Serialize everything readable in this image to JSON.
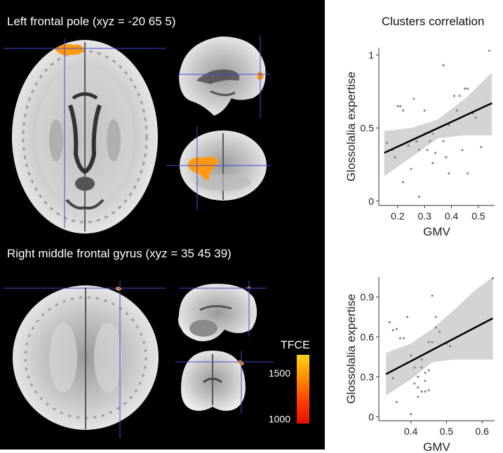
{
  "panels": {
    "top_title": "Left frontal pole (xyz = -20 65 5)",
    "bottom_title": "Right middle frontal gyrus (xyz = 35 45 39)"
  },
  "colorbar": {
    "title": "TFCE",
    "ticks": [
      "1500",
      "1000"
    ],
    "tick_values": [
      1500,
      1000
    ],
    "range": [
      950,
      1700
    ],
    "colors": [
      "#ffd21a",
      "#ff8a00",
      "#ff3a00",
      "#e01000"
    ]
  },
  "overlay_color": "#ff9a10",
  "crosshair_color": "#4747d8",
  "plots_title": "Clusters correlation",
  "chart_data": [
    {
      "type": "scatter",
      "xlabel": "GMV",
      "ylabel": "Glossolalia expertise",
      "xlim": [
        0.13,
        0.56
      ],
      "ylim": [
        -0.03,
        1.05
      ],
      "xticks": [
        0.2,
        0.3,
        0.4,
        0.5
      ],
      "xtick_labels": [
        "0.2",
        "0.3",
        "0.4",
        "0.5"
      ],
      "yticks": [
        0,
        0.5,
        1
      ],
      "ytick_labels": [
        "0",
        "0.5",
        "1"
      ],
      "fit_line": [
        [
          0.15,
          0.33
        ],
        [
          0.55,
          0.67
        ]
      ],
      "ci_upper": [
        [
          0.15,
          0.48
        ],
        [
          0.25,
          0.5
        ],
        [
          0.35,
          0.56
        ],
        [
          0.45,
          0.7
        ],
        [
          0.55,
          0.88
        ]
      ],
      "ci_lower": [
        [
          0.15,
          0.17
        ],
        [
          0.25,
          0.3
        ],
        [
          0.35,
          0.43
        ],
        [
          0.45,
          0.45
        ],
        [
          0.55,
          0.45
        ]
      ],
      "points": [
        [
          0.16,
          0.4
        ],
        [
          0.18,
          0.35
        ],
        [
          0.19,
          0.3
        ],
        [
          0.2,
          0.65
        ],
        [
          0.21,
          0.65
        ],
        [
          0.22,
          0.62
        ],
        [
          0.22,
          0.13
        ],
        [
          0.24,
          0.38
        ],
        [
          0.25,
          0.22
        ],
        [
          0.26,
          0.7
        ],
        [
          0.27,
          0.41
        ],
        [
          0.28,
          0.03
        ],
        [
          0.28,
          0.35
        ],
        [
          0.3,
          0.62
        ],
        [
          0.3,
          0.46
        ],
        [
          0.31,
          0.35
        ],
        [
          0.32,
          0.41
        ],
        [
          0.33,
          0.46
        ],
        [
          0.33,
          0.26
        ],
        [
          0.34,
          0.33
        ],
        [
          0.35,
          0.5
        ],
        [
          0.37,
          0.93
        ],
        [
          0.37,
          0.41
        ],
        [
          0.38,
          0.3
        ],
        [
          0.39,
          0.19
        ],
        [
          0.39,
          0.52
        ],
        [
          0.41,
          0.72
        ],
        [
          0.42,
          0.62
        ],
        [
          0.43,
          0.72
        ],
        [
          0.44,
          0.35
        ],
        [
          0.45,
          0.77
        ],
        [
          0.46,
          0.77
        ],
        [
          0.46,
          0.19
        ],
        [
          0.48,
          0.6
        ],
        [
          0.49,
          0.57
        ],
        [
          0.51,
          0.37
        ],
        [
          0.54,
          1.03
        ]
      ],
      "grid": false
    },
    {
      "type": "scatter",
      "xlabel": "GMV",
      "ylabel": "Glossolalia expertise",
      "xlim": [
        0.31,
        0.635
      ],
      "ylim": [
        -0.03,
        1.05
      ],
      "xticks": [
        0.4,
        0.5,
        0.6
      ],
      "xtick_labels": [
        "0.4",
        "0.5",
        "0.6"
      ],
      "yticks": [
        0,
        0.3,
        0.6,
        0.9
      ],
      "ytick_labels": [
        "0",
        "0.3",
        "0.6",
        "0.9"
      ],
      "fit_line": [
        [
          0.33,
          0.32
        ],
        [
          0.63,
          0.74
        ]
      ],
      "ci_upper": [
        [
          0.33,
          0.48
        ],
        [
          0.4,
          0.55
        ],
        [
          0.46,
          0.66
        ],
        [
          0.52,
          0.8
        ],
        [
          0.58,
          0.95
        ],
        [
          0.63,
          1.05
        ]
      ],
      "ci_lower": [
        [
          0.33,
          0.16
        ],
        [
          0.4,
          0.28
        ],
        [
          0.46,
          0.41
        ],
        [
          0.52,
          0.43
        ],
        [
          0.58,
          0.43
        ],
        [
          0.63,
          0.43
        ]
      ],
      "points": [
        [
          0.34,
          0.71
        ],
        [
          0.35,
          0.65
        ],
        [
          0.35,
          0.29
        ],
        [
          0.36,
          0.66
        ],
        [
          0.36,
          0.11
        ],
        [
          0.37,
          0.59
        ],
        [
          0.38,
          0.59
        ],
        [
          0.39,
          0.75
        ],
        [
          0.4,
          0.02
        ],
        [
          0.4,
          0.46
        ],
        [
          0.41,
          0.37
        ],
        [
          0.41,
          0.25
        ],
        [
          0.42,
          0.22
        ],
        [
          0.42,
          0.3
        ],
        [
          0.42,
          0.15
        ],
        [
          0.43,
          0.43
        ],
        [
          0.43,
          0.37
        ],
        [
          0.43,
          0.19
        ],
        [
          0.44,
          0.27
        ],
        [
          0.44,
          0.19
        ],
        [
          0.44,
          0.33
        ],
        [
          0.45,
          0.56
        ],
        [
          0.45,
          0.2
        ],
        [
          0.45,
          0.35
        ],
        [
          0.46,
          0.91
        ],
        [
          0.46,
          0.56
        ],
        [
          0.47,
          0.75
        ],
        [
          0.47,
          0.67
        ],
        [
          0.48,
          0.64
        ],
        [
          0.5,
          0.55
        ],
        [
          0.51,
          0.53
        ],
        [
          0.63,
          1.04
        ]
      ],
      "grid": false
    }
  ]
}
